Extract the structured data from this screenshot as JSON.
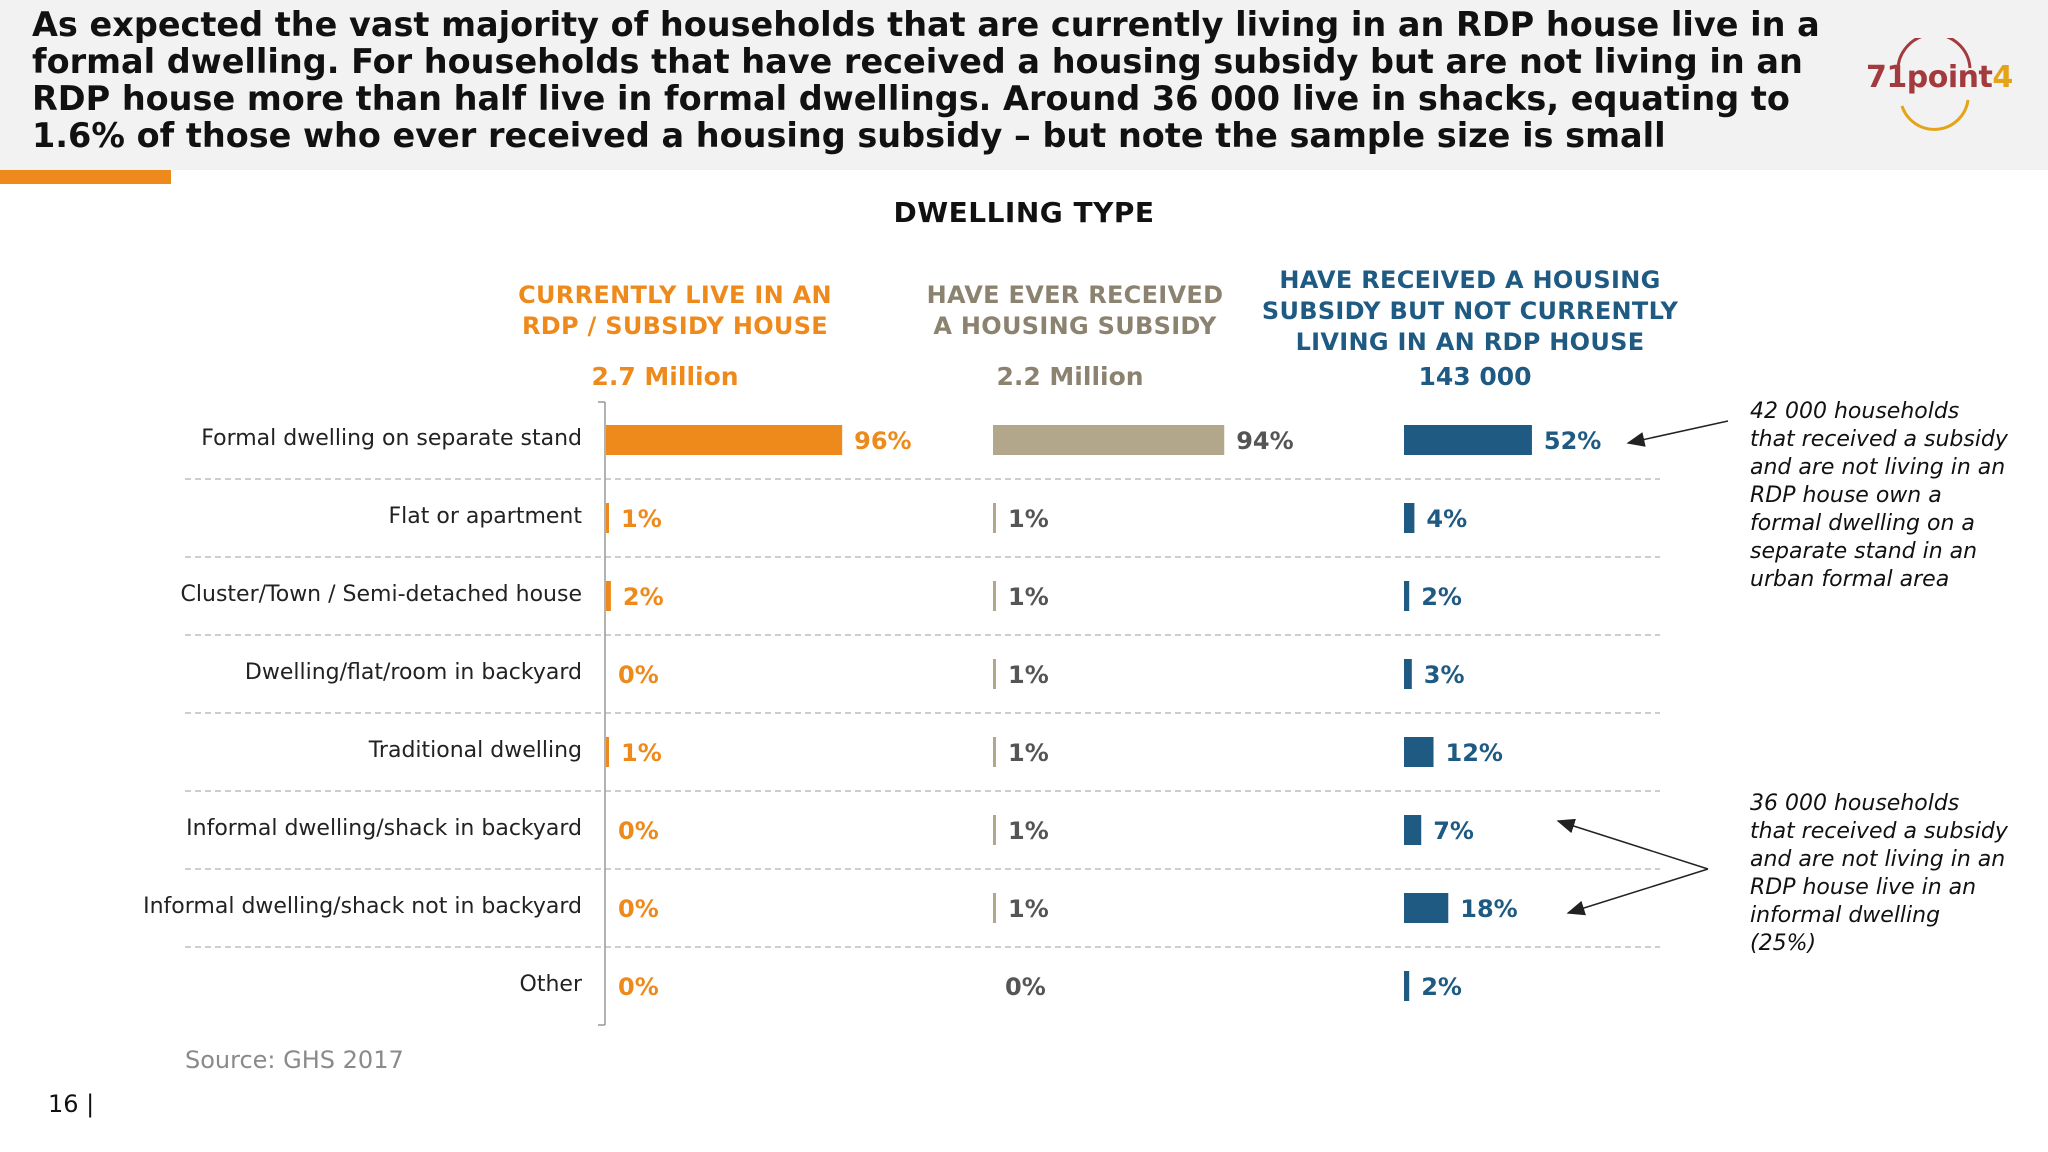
{
  "headline": "As expected the vast majority of households that are currently living in an RDP house live in a formal dwelling. For households that have received a housing subsidy but are not living in an RDP house more than half live in formal dwellings. Around 36 000 live in shacks, equating to 1.6% of those who ever received a housing subsidy – but note the sample size is small",
  "logo": {
    "text_main": "71point",
    "text_accent": "4"
  },
  "source": "Source: GHS 2017",
  "page_number": "16 |",
  "chart_data": {
    "type": "bar",
    "title": "DWELLING TYPE",
    "categories": [
      "Formal dwelling on separate stand",
      "Flat or apartment",
      "Cluster/Town / Semi-detached house",
      "Dwelling/flat/room in backyard",
      "Traditional dwelling",
      "Informal dwelling/shack in backyard",
      "Informal dwelling/shack not in backyard",
      "Other"
    ],
    "series": [
      {
        "name": "CURRENTLY LIVE IN AN RDP / SUBSIDY HOUSE",
        "total": "2.7 Million",
        "color": "#ee8a1b",
        "label_color": "#ee8a1b",
        "values": [
          96,
          1,
          2,
          0,
          1,
          0,
          0,
          0
        ],
        "labels": [
          "96%",
          "1%",
          "2%",
          "0%",
          "1%",
          "0%",
          "0%",
          "0%"
        ]
      },
      {
        "name": "HAVE EVER RECEIVED A HOUSING SUBSIDY",
        "total": "2.2 Million",
        "color": "#b2a68b",
        "label_color": "#555555",
        "values": [
          94,
          1,
          1,
          1,
          1,
          1,
          1,
          0
        ],
        "labels": [
          "94%",
          "1%",
          "1%",
          "1%",
          "1%",
          "1%",
          "1%",
          "0%"
        ]
      },
      {
        "name": "HAVE RECEIVED A HOUSING SUBSIDY BUT NOT CURRENTLY LIVING IN AN RDP HOUSE",
        "total": "143 000",
        "color": "#1e5a82",
        "label_color": "#1e5a82",
        "values": [
          52,
          4,
          2,
          3,
          12,
          7,
          18,
          2
        ],
        "labels": [
          "52%",
          "4%",
          "2%",
          "3%",
          "12%",
          "7%",
          "18%",
          "2%"
        ]
      }
    ],
    "xlim": [
      0,
      100
    ],
    "annotations": [
      "42 000 households that received a subsidy and are not living in an RDP house own a formal dwelling on a separate stand in an urban formal area",
      "36 000 households that received a subsidy and are not living in an RDP house live in an informal dwelling (25%)"
    ]
  }
}
